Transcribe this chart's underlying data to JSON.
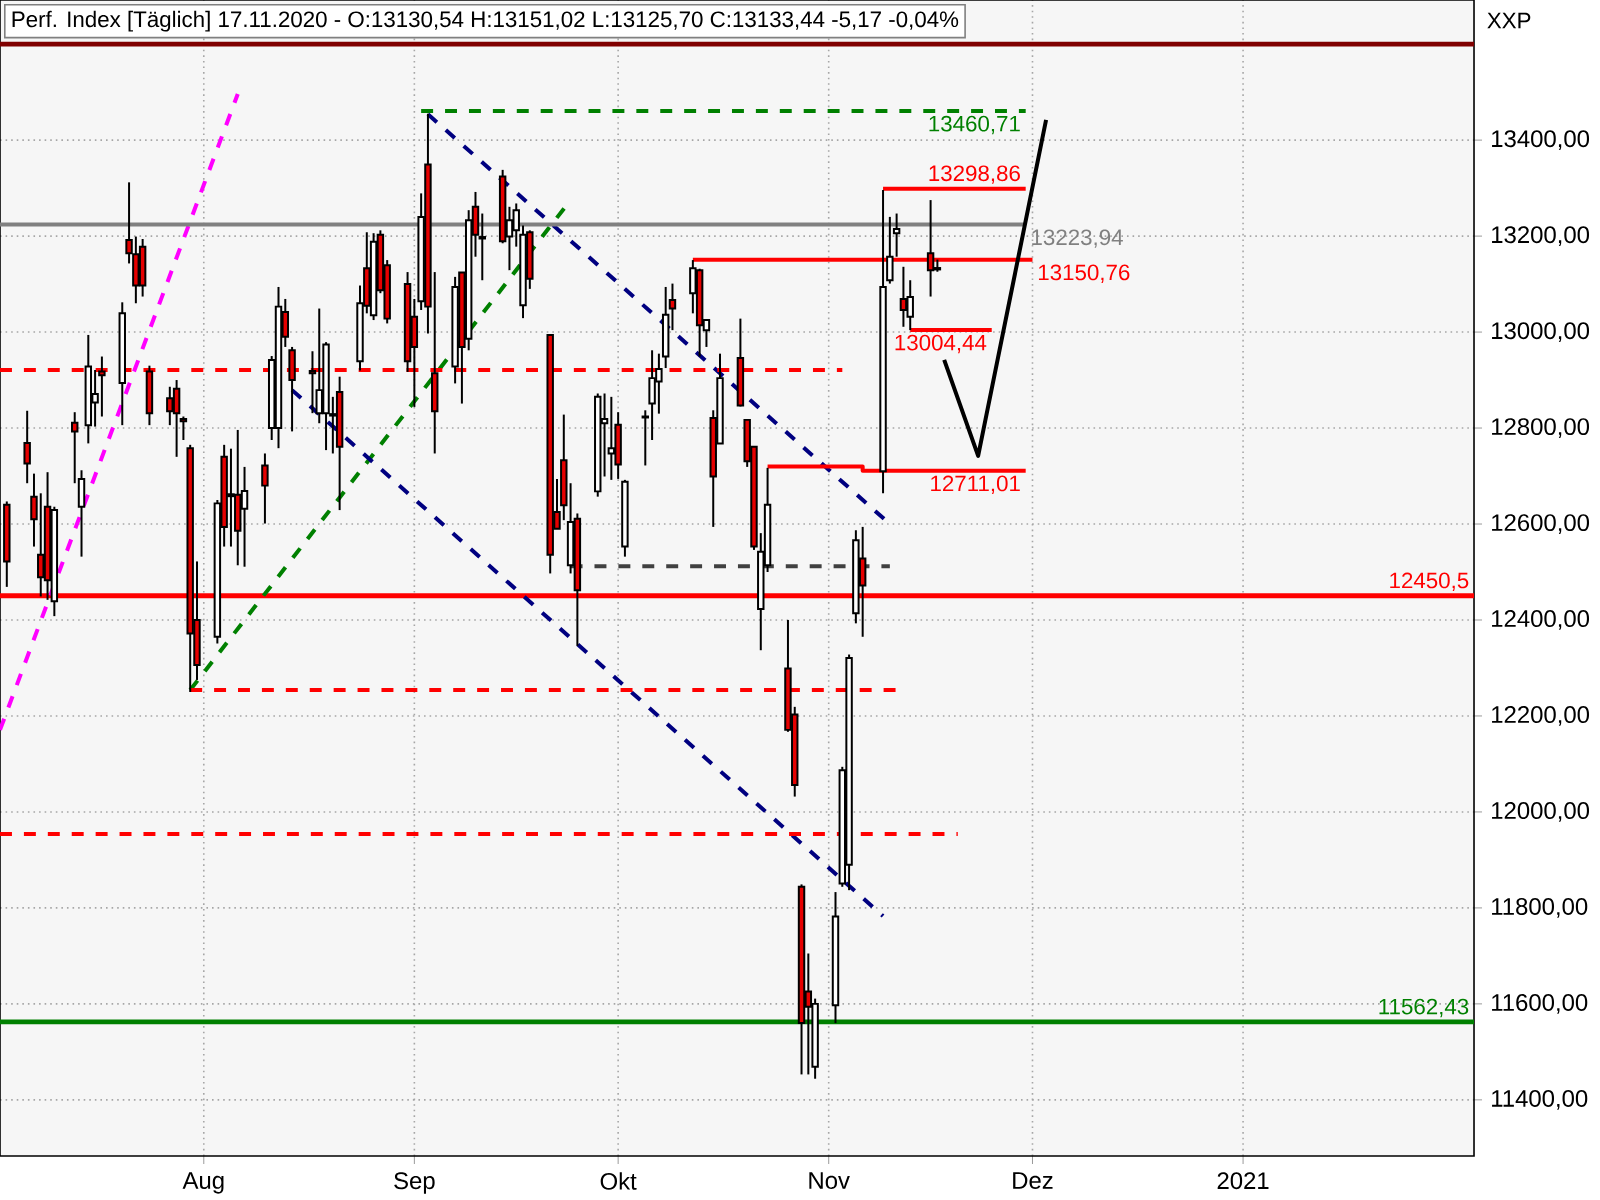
{
  "chart_data": {
    "type": "candlestick",
    "title": "Perf. Index [Täglich] 17.11.2020 - O:13130,54 H:13151,02 L:13125,70 C:13133,44 -5,17 -0,04%",
    "x": [
      "2020-07-03",
      "2020-07-06",
      "2020-07-07",
      "2020-07-08",
      "2020-07-09",
      "2020-07-10",
      "2020-07-13",
      "2020-07-14",
      "2020-07-15",
      "2020-07-16",
      "2020-07-17",
      "2020-07-20",
      "2020-07-21",
      "2020-07-22",
      "2020-07-23",
      "2020-07-24",
      "2020-07-27",
      "2020-07-28",
      "2020-07-29",
      "2020-07-30",
      "2020-07-31",
      "2020-08-03",
      "2020-08-04",
      "2020-08-05",
      "2020-08-06",
      "2020-08-07",
      "2020-08-10",
      "2020-08-11",
      "2020-08-12",
      "2020-08-13",
      "2020-08-14",
      "2020-08-17",
      "2020-08-18",
      "2020-08-19",
      "2020-08-20",
      "2020-08-21",
      "2020-08-24",
      "2020-08-25",
      "2020-08-26",
      "2020-08-27",
      "2020-08-28",
      "2020-08-31",
      "2020-09-01",
      "2020-09-02",
      "2020-09-03",
      "2020-09-04",
      "2020-09-07",
      "2020-09-08",
      "2020-09-09",
      "2020-09-10",
      "2020-09-11",
      "2020-09-14",
      "2020-09-15",
      "2020-09-16",
      "2020-09-17",
      "2020-09-18",
      "2020-09-21",
      "2020-09-22",
      "2020-09-23",
      "2020-09-24",
      "2020-09-25",
      "2020-09-28",
      "2020-09-29",
      "2020-09-30",
      "2020-10-01",
      "2020-10-02",
      "2020-10-05",
      "2020-10-06",
      "2020-10-07",
      "2020-10-08",
      "2020-10-09",
      "2020-10-12",
      "2020-10-13",
      "2020-10-14",
      "2020-10-15",
      "2020-10-16",
      "2020-10-19",
      "2020-10-20",
      "2020-10-21",
      "2020-10-22",
      "2020-10-23",
      "2020-10-26",
      "2020-10-27",
      "2020-10-28",
      "2020-10-29",
      "2020-10-30",
      "2020-11-02",
      "2020-11-03",
      "2020-11-04",
      "2020-11-05",
      "2020-11-06",
      "2020-11-09",
      "2020-11-10",
      "2020-11-11",
      "2020-11-12",
      "2020-11-13",
      "2020-11-16",
      "2020-11-17"
    ],
    "ohlc": [
      [
        12640,
        12647,
        12469,
        12522
      ],
      [
        12769,
        12836,
        12685,
        12726
      ],
      [
        12657,
        12705,
        12553,
        12610
      ],
      [
        12536,
        12664,
        12449,
        12489
      ],
      [
        12636,
        12708,
        12442,
        12483
      ],
      [
        12439,
        12636,
        12408,
        12629
      ],
      [
        12811,
        12833,
        12685,
        12793
      ],
      [
        12636,
        12712,
        12532,
        12694
      ],
      [
        12806,
        12994,
        12768,
        12928
      ],
      [
        12853,
        12921,
        12803,
        12871
      ],
      [
        12918,
        12949,
        12824,
        12910
      ],
      [
        12894,
        13062,
        12806,
        13039
      ],
      [
        13192,
        13312,
        13143,
        13164
      ],
      [
        13162,
        13199,
        13060,
        13097
      ],
      [
        13178,
        13194,
        13074,
        13097
      ],
      [
        12918,
        12930,
        12806,
        12831
      ],
      [
        12862,
        12886,
        12806,
        12835
      ],
      [
        12882,
        12900,
        12740,
        12831
      ],
      [
        12819,
        12824,
        12775,
        12814
      ],
      [
        12758,
        12765,
        12250,
        12372
      ],
      [
        12400,
        12522,
        12275,
        12306
      ],
      [
        12365,
        12650,
        12351,
        12643
      ],
      [
        12740,
        12765,
        12553,
        12594
      ],
      [
        12662,
        12757,
        12553,
        12658
      ],
      [
        12661,
        12796,
        12514,
        12586
      ],
      [
        12632,
        12719,
        12511,
        12669
      ],
      [
        12722,
        12747,
        12601,
        12680
      ],
      [
        12800,
        12950,
        12775,
        12942
      ],
      [
        12800,
        13094,
        12758,
        13053
      ],
      [
        13042,
        13069,
        12969,
        12990
      ],
      [
        12962,
        12969,
        12793,
        12900
      ],
      [
        12919,
        12960,
        12831,
        12914
      ],
      [
        12831,
        13049,
        12810,
        12879
      ],
      [
        12831,
        12979,
        12754,
        12974
      ],
      [
        12829,
        12865,
        12747,
        12826
      ],
      [
        12875,
        12907,
        12629,
        12761
      ],
      [
        12939,
        13097,
        12920,
        13060
      ],
      [
        13133,
        13208,
        13039,
        13055
      ],
      [
        13035,
        13206,
        13025,
        13188
      ],
      [
        13203,
        13212,
        13081,
        13087
      ],
      [
        13139,
        13150,
        13018,
        13028
      ],
      [
        13100,
        13125,
        12917,
        12939
      ],
      [
        13032,
        13069,
        12844,
        12969
      ],
      [
        13064,
        13289,
        13046,
        13240
      ],
      [
        13349,
        13455,
        12997,
        13053
      ],
      [
        12914,
        13125,
        12747,
        12835
      ],
      [
        12928,
        13115,
        12893,
        13094
      ],
      [
        13124,
        13124,
        12851,
        12969
      ],
      [
        12986,
        13254,
        12962,
        13233
      ],
      [
        13261,
        13292,
        13157,
        13203
      ],
      [
        13198,
        13247,
        13108,
        13195
      ],
      [
        13324,
        13338,
        13185,
        13189
      ],
      [
        13199,
        13261,
        13129,
        13233
      ],
      [
        13212,
        13268,
        13178,
        13254
      ],
      [
        13056,
        13222,
        13029,
        13203
      ],
      [
        13208,
        13212,
        13090,
        13111
      ],
      [
        12994,
        12994,
        12497,
        12536
      ],
      [
        12625,
        12694,
        12590,
        12590
      ],
      [
        12733,
        12828,
        12608,
        12639
      ],
      [
        12514,
        12685,
        12497,
        12604
      ],
      [
        12611,
        12622,
        12346,
        12462
      ],
      [
        12668,
        12872,
        12657,
        12865
      ],
      [
        12810,
        12872,
        12699,
        12819
      ],
      [
        12747,
        12865,
        12692,
        12758
      ],
      [
        12807,
        12833,
        12694,
        12724
      ],
      [
        12553,
        12692,
        12532,
        12688
      ],
      [
        12822,
        12837,
        12722,
        12824
      ],
      [
        12851,
        12962,
        12775,
        12904
      ],
      [
        12897,
        12955,
        12830,
        12923
      ],
      [
        12949,
        13094,
        12925,
        13036
      ],
      [
        13067,
        13101,
        13004,
        13049
      ],
      [
        13081,
        13150,
        13039,
        13133
      ],
      [
        13129,
        13132,
        12949,
        13014
      ],
      [
        13004,
        13025,
        12969,
        13025
      ],
      [
        12821,
        12837,
        12594,
        12699
      ],
      [
        12768,
        12955,
        12768,
        12904
      ],
      [
        12946,
        13028,
        12845,
        12847
      ],
      [
        12817,
        12817,
        12719,
        12731
      ],
      [
        12761,
        12761,
        12546,
        12553
      ],
      [
        12423,
        12581,
        12337,
        12542
      ],
      [
        12514,
        12717,
        12500,
        12640
      ],
      [
        12299,
        12400,
        12167,
        12171
      ],
      [
        12203,
        12219,
        12032,
        12056
      ],
      [
        11844,
        11849,
        11453,
        11560
      ],
      [
        11626,
        11705,
        11453,
        11594
      ],
      [
        11469,
        11611,
        11444,
        11600
      ],
      [
        11597,
        11833,
        11560,
        11782
      ],
      [
        11851,
        12094,
        11844,
        12087
      ],
      [
        11890,
        12328,
        11837,
        12321
      ],
      [
        12414,
        12587,
        12393,
        12566
      ],
      [
        12528,
        12594,
        12365,
        12472
      ],
      [
        12710,
        13296,
        12664,
        13094
      ],
      [
        13108,
        13240,
        13101,
        13157
      ],
      [
        13206,
        13247,
        13157,
        13215
      ],
      [
        13069,
        13136,
        13011,
        13046
      ],
      [
        13032,
        13108,
        13004,
        13073
      ],
      [
        13164,
        13275,
        13074,
        13129
      ],
      [
        13130.54,
        13151.02,
        13125.7,
        13133.44
      ]
    ],
    "series": [
      {
        "type": "line",
        "color": "#ff00ff",
        "line_style": "dashed",
        "x": [
          "2020-07-02",
          "2020-08-06"
        ],
        "values": [
          12171,
          13496
        ]
      },
      {
        "type": "line",
        "color": "#008000",
        "line_style": "dashed",
        "x": [
          "2020-07-30",
          "2020-09-24"
        ],
        "values": [
          12254,
          13275
        ]
      },
      {
        "type": "line",
        "color": "#000080",
        "line_style": "dashed",
        "x": [
          "2020-09-03",
          "2020-11-10"
        ],
        "values": [
          13454,
          12600
        ]
      },
      {
        "type": "line",
        "color": "#000080",
        "line_style": "dashed",
        "x": [
          "2020-08-14",
          "2020-11-09"
        ],
        "values": [
          12879,
          11783
        ]
      },
      {
        "type": "line",
        "color": "#ff0000",
        "line_style": "dashed",
        "x": [
          "2020-07-02",
          "2020-11-03"
        ],
        "values": [
          12921,
          12921
        ]
      },
      {
        "type": "line",
        "color": "#ff0000",
        "line_style": "dashed",
        "x": [
          "2020-07-02",
          "2020-11-20"
        ],
        "values": [
          11954,
          11954
        ]
      },
      {
        "type": "line",
        "color": "#ff0000",
        "line_style": "dashed",
        "x": [
          "2020-07-30",
          "2020-11-11"
        ],
        "values": [
          12254,
          12254
        ]
      },
      {
        "type": "line",
        "color": "#404040",
        "line_style": "dashed",
        "x": [
          "2020-09-24",
          "2020-11-10"
        ],
        "values": [
          12512,
          12512
        ]
      },
      {
        "type": "line",
        "name": "13460,71",
        "color": "#008000",
        "line_style": "dashed",
        "x": [
          "2020-09-02",
          "2020-11-30"
        ],
        "values": [
          13460.71,
          13460.71
        ]
      },
      {
        "type": "line",
        "name": "13298,86",
        "color": "#ff0000",
        "line_style": "solid",
        "x": [
          "2020-11-09",
          "2020-11-30"
        ],
        "values": [
          13298.86,
          13298.86
        ]
      },
      {
        "type": "line",
        "name": "13223,94",
        "color": "#808080",
        "line_style": "solid",
        "x": [
          "2020-07-02",
          "2020-11-30"
        ],
        "values": [
          13223.94,
          13223.94
        ]
      },
      {
        "type": "line",
        "name": "13150,76",
        "color": "#ff0000",
        "line_style": "solid",
        "x": [
          "2020-10-12",
          "2020-12-01"
        ],
        "values": [
          13150.76,
          13150.76
        ]
      },
      {
        "type": "line",
        "name": "13004,44",
        "color": "#ff0000",
        "line_style": "solid",
        "x": [
          "2020-11-13",
          "2020-11-25"
        ],
        "values": [
          13004.44,
          13004.44
        ]
      },
      {
        "type": "line",
        "name": "12711,01",
        "color": "#ff0000",
        "line_style": "solid",
        "x": [
          "2020-10-23",
          "2020-11-06",
          "2020-11-06",
          "2020-11-30"
        ],
        "values": [
          12720,
          12720,
          12711.01,
          12711.01
        ]
      },
      {
        "type": "line",
        "color": "#000000",
        "line_style": "solid",
        "x": [
          "2020-11-18",
          "2020-11-23",
          "2020-12-03"
        ],
        "values": [
          12942,
          12742,
          13442
        ]
      }
    ],
    "ref_lines": [
      {
        "axis": "y",
        "value": 12450.5,
        "label": "12450,5",
        "color": "#ff0000"
      },
      {
        "axis": "y",
        "value": 11562.43,
        "label": "11562,43",
        "color": "#008000"
      },
      {
        "axis": "y",
        "value": 13600,
        "color": "#800000"
      }
    ],
    "annotations": [
      "XXP"
    ],
    "xlim": [
      "2020-07-02",
      "2021-02-04"
    ],
    "ylim": [
      11283,
      13692
    ],
    "xticks": [
      {
        "value": "2020-08-01",
        "label": "Aug"
      },
      {
        "value": "2020-09-01",
        "label": "Sep"
      },
      {
        "value": "2020-10-01",
        "label": "Okt"
      },
      {
        "value": "2020-11-01",
        "label": "Nov"
      },
      {
        "value": "2020-12-01",
        "label": "Dez"
      },
      {
        "value": "2021-01-01",
        "label": "2021"
      }
    ],
    "yticks": [
      {
        "value": 11400,
        "label": "11400,00"
      },
      {
        "value": 11600,
        "label": "11600,00"
      },
      {
        "value": 11800,
        "label": "11800,00"
      },
      {
        "value": 12000,
        "label": "12000,00"
      },
      {
        "value": 12200,
        "label": "12200,00"
      },
      {
        "value": 12400,
        "label": "12400,00"
      },
      {
        "value": 12600,
        "label": "12600,00"
      },
      {
        "value": 12800,
        "label": "12800,00"
      },
      {
        "value": 13000,
        "label": "13000,00"
      },
      {
        "value": 13200,
        "label": "13200,00"
      },
      {
        "value": 13400,
        "label": "13400,00"
      }
    ],
    "grid": true
  }
}
